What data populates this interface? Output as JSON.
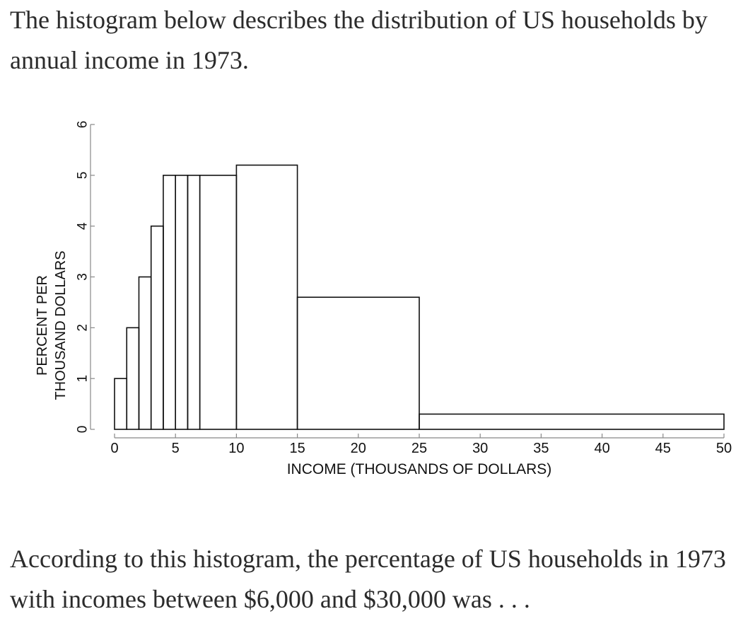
{
  "intro_text": "The histogram below describes the distribution of US households by annual income in 1973.",
  "question_text": "According to this histogram, the percentage of US households in 1973 with incomes between $6,000 and $30,000 was . . .",
  "chart_data": {
    "type": "bar",
    "xlabel": "INCOME (THOUSANDS OF DOLLARS)",
    "ylabel": [
      "PERCENT PER",
      "THOUSAND DOLLARS"
    ],
    "xlim": [
      0,
      50
    ],
    "ylim": [
      0,
      6
    ],
    "x_ticks": [
      0,
      5,
      10,
      15,
      20,
      25,
      30,
      35,
      40,
      45,
      50
    ],
    "y_ticks": [
      0,
      1,
      2,
      3,
      4,
      5,
      6
    ],
    "grid": false,
    "bins": [
      {
        "left": 0,
        "right": 1,
        "height": 1
      },
      {
        "left": 1,
        "right": 2,
        "height": 2
      },
      {
        "left": 2,
        "right": 3,
        "height": 3
      },
      {
        "left": 3,
        "right": 4,
        "height": 4
      },
      {
        "left": 4,
        "right": 5,
        "height": 5
      },
      {
        "left": 5,
        "right": 6,
        "height": 5
      },
      {
        "left": 6,
        "right": 7,
        "height": 5
      },
      {
        "left": 7,
        "right": 10,
        "height": 5
      },
      {
        "left": 10,
        "right": 15,
        "height": 5.2
      },
      {
        "left": 15,
        "right": 25,
        "height": 2.6
      },
      {
        "left": 25,
        "right": 50,
        "height": 0.3
      }
    ]
  }
}
